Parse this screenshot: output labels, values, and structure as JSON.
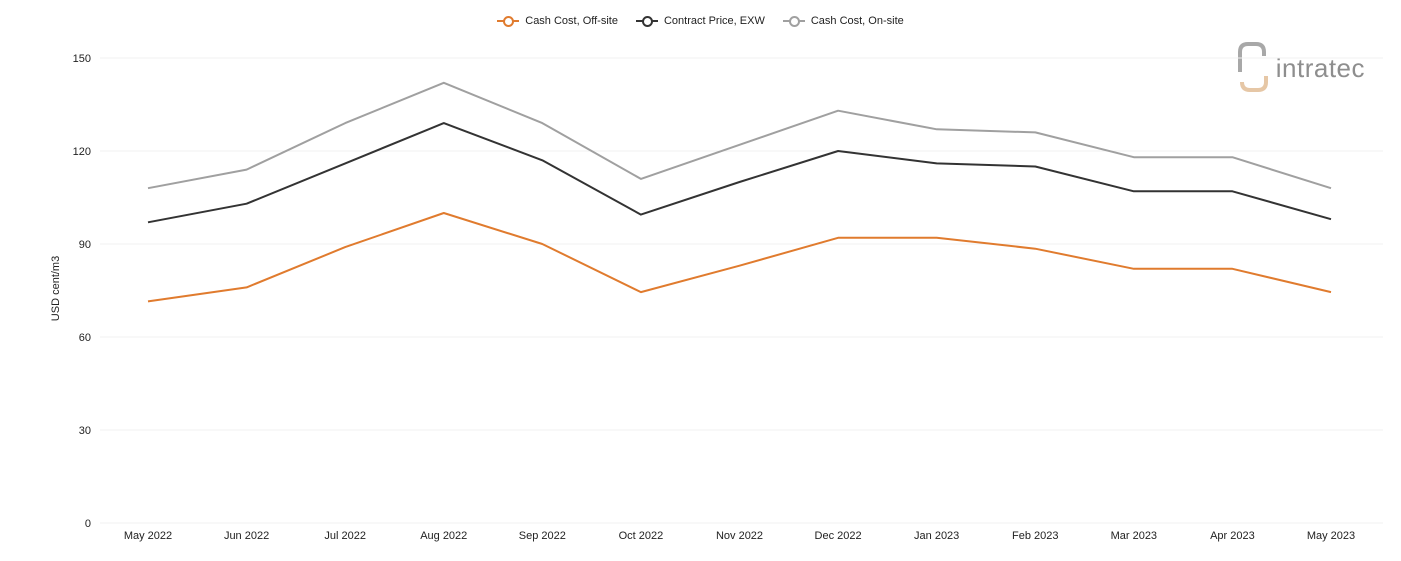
{
  "brand": {
    "logo_text": "intratec",
    "logo_colors": {
      "text": "#8e8e8e",
      "accent": "#e6c7a6"
    }
  },
  "chart_data": {
    "type": "line",
    "title": "",
    "xlabel": "",
    "ylabel": "USD cent/m3",
    "ylim": [
      0,
      150
    ],
    "yticks": [
      0,
      30,
      60,
      90,
      120,
      150
    ],
    "grid": true,
    "legend_position": "top-center",
    "categories": [
      "May 2022",
      "Jun 2022",
      "Jul 2022",
      "Aug 2022",
      "Sep 2022",
      "Oct 2022",
      "Nov 2022",
      "Dec 2022",
      "Jan 2023",
      "Feb 2023",
      "Mar 2023",
      "Apr 2023",
      "May 2023"
    ],
    "series": [
      {
        "name": "Cash Cost, Off-site",
        "color": "#e07b2e",
        "values": [
          71.5,
          76,
          89,
          100,
          90,
          74.5,
          83,
          92,
          92,
          88.5,
          82,
          82,
          74.5
        ]
      },
      {
        "name": "Contract Price, EXW",
        "color": "#333333",
        "values": [
          97,
          103,
          116,
          129,
          117,
          99.5,
          110,
          120,
          116,
          115,
          107,
          107,
          98
        ]
      },
      {
        "name": "Cash Cost, On-site",
        "color": "#a0a0a0",
        "values": [
          108,
          114,
          129,
          142,
          129,
          111,
          122,
          133,
          127,
          126,
          118,
          118,
          108
        ]
      }
    ]
  }
}
